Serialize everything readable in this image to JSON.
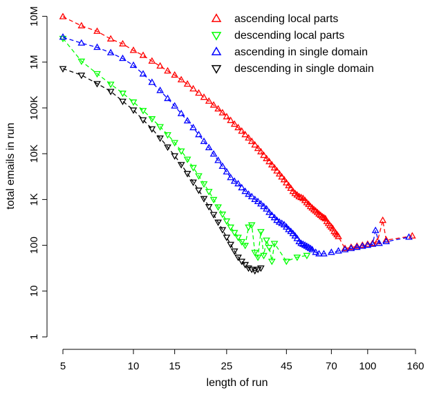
{
  "chart_data": {
    "type": "scatter",
    "title": "",
    "xlabel": "length of run",
    "ylabel": "total emails in run",
    "x_scale": "log",
    "y_scale": "log",
    "xlim": [
      4.5,
      170
    ],
    "ylim": [
      1,
      12000000
    ],
    "x_ticks": [
      5,
      10,
      15,
      25,
      45,
      70,
      100,
      160
    ],
    "x_tick_labels": [
      "5",
      "10",
      "15",
      "25",
      "45",
      "70",
      "100",
      "160"
    ],
    "y_ticks": [
      1,
      10,
      100,
      1000,
      10000,
      100000,
      1000000,
      10000000
    ],
    "y_tick_labels": [
      "1",
      "10",
      "100",
      "1K",
      "10K",
      "100K",
      "1M",
      "10M"
    ],
    "grid": false,
    "legend_position": "top-right",
    "series": [
      {
        "name": "ascending local parts",
        "marker": "triangle-up",
        "color": "#ff0000",
        "points": [
          [
            5,
            9800000
          ],
          [
            6,
            6200000
          ],
          [
            7,
            4700000
          ],
          [
            8,
            3200000
          ],
          [
            9,
            2500000
          ],
          [
            10,
            1800000
          ],
          [
            11,
            1400000
          ],
          [
            12,
            1050000
          ],
          [
            13,
            820000
          ],
          [
            14,
            640000
          ],
          [
            15,
            520000
          ],
          [
            16,
            410000
          ],
          [
            17,
            330000
          ],
          [
            18,
            260000
          ],
          [
            19,
            210000
          ],
          [
            20,
            170000
          ],
          [
            21,
            140000
          ],
          [
            22,
            115000
          ],
          [
            23,
            95000
          ],
          [
            24,
            78000
          ],
          [
            25,
            64000
          ],
          [
            26,
            53000
          ],
          [
            27,
            44000
          ],
          [
            28,
            37000
          ],
          [
            29,
            31000
          ],
          [
            30,
            26000
          ],
          [
            31,
            22000
          ],
          [
            32,
            18500
          ],
          [
            33,
            15500
          ],
          [
            34,
            13000
          ],
          [
            35,
            11000
          ],
          [
            36,
            9200
          ],
          [
            37,
            7800
          ],
          [
            38,
            6700
          ],
          [
            39,
            5700
          ],
          [
            40,
            4900
          ],
          [
            41,
            4200
          ],
          [
            42,
            3600
          ],
          [
            43,
            3100
          ],
          [
            44,
            2700
          ],
          [
            45,
            2300
          ],
          [
            46,
            2000
          ],
          [
            47,
            1750
          ],
          [
            48,
            1500
          ],
          [
            49,
            1350
          ],
          [
            50,
            1250
          ],
          [
            51,
            1150
          ],
          [
            52,
            1100
          ],
          [
            53,
            1050
          ],
          [
            54,
            950
          ],
          [
            55,
            850
          ],
          [
            56,
            780
          ],
          [
            57,
            700
          ],
          [
            58,
            650
          ],
          [
            59,
            600
          ],
          [
            60,
            560
          ],
          [
            61,
            520
          ],
          [
            62,
            480
          ],
          [
            63,
            450
          ],
          [
            64,
            420
          ],
          [
            65,
            400
          ],
          [
            66,
            380
          ],
          [
            67,
            330
          ],
          [
            68,
            300
          ],
          [
            69,
            270
          ],
          [
            70,
            250
          ],
          [
            71,
            230
          ],
          [
            72,
            200
          ],
          [
            73,
            185
          ],
          [
            74,
            170
          ],
          [
            75,
            155
          ],
          [
            80,
            85
          ],
          [
            85,
            90
          ],
          [
            90,
            95
          ],
          [
            95,
            100
          ],
          [
            100,
            105
          ],
          [
            105,
            110
          ],
          [
            110,
            120
          ],
          [
            116,
            350
          ],
          [
            120,
            130
          ],
          [
            155,
            160
          ]
        ]
      },
      {
        "name": "descending local parts",
        "marker": "triangle-down",
        "color": "#00ff00",
        "points": [
          [
            5,
            3300000
          ],
          [
            6,
            1050000
          ],
          [
            7,
            560000
          ],
          [
            8,
            330000
          ],
          [
            9,
            210000
          ],
          [
            10,
            135000
          ],
          [
            11,
            88000
          ],
          [
            12,
            58000
          ],
          [
            13,
            39000
          ],
          [
            14,
            26000
          ],
          [
            15,
            17500
          ],
          [
            16,
            11500
          ],
          [
            17,
            7600
          ],
          [
            18,
            5000
          ],
          [
            19,
            3300
          ],
          [
            20,
            2200
          ],
          [
            21,
            1500
          ],
          [
            22,
            1000
          ],
          [
            23,
            690
          ],
          [
            24,
            480
          ],
          [
            25,
            340
          ],
          [
            26,
            250
          ],
          [
            27,
            190
          ],
          [
            28,
            150
          ],
          [
            29,
            120
          ],
          [
            30,
            100
          ],
          [
            31,
            250
          ],
          [
            32,
            280
          ],
          [
            33,
            70
          ],
          [
            34,
            55
          ],
          [
            35,
            200
          ],
          [
            36,
            60
          ],
          [
            37,
            130
          ],
          [
            38,
            90
          ],
          [
            39,
            45
          ],
          [
            40,
            110
          ],
          [
            45,
            45
          ],
          [
            50,
            55
          ],
          [
            55,
            60
          ]
        ]
      },
      {
        "name": "ascending in single domain",
        "marker": "triangle-up",
        "color": "#0000ff",
        "points": [
          [
            5,
            3500000
          ],
          [
            6,
            2600000
          ],
          [
            7,
            2100000
          ],
          [
            8,
            1600000
          ],
          [
            9,
            1200000
          ],
          [
            10,
            850000
          ],
          [
            11,
            550000
          ],
          [
            12,
            360000
          ],
          [
            13,
            240000
          ],
          [
            14,
            160000
          ],
          [
            15,
            110000
          ],
          [
            16,
            75000
          ],
          [
            17,
            52000
          ],
          [
            18,
            37000
          ],
          [
            19,
            26000
          ],
          [
            20,
            18500
          ],
          [
            21,
            13500
          ],
          [
            22,
            9800
          ],
          [
            23,
            7100
          ],
          [
            24,
            5300
          ],
          [
            25,
            4000
          ],
          [
            26,
            3000
          ],
          [
            27,
            2500
          ],
          [
            28,
            2200
          ],
          [
            29,
            1800
          ],
          [
            30,
            1500
          ],
          [
            31,
            1300
          ],
          [
            32,
            1150
          ],
          [
            33,
            1000
          ],
          [
            34,
            900
          ],
          [
            35,
            800
          ],
          [
            36,
            700
          ],
          [
            37,
            620
          ],
          [
            38,
            520
          ],
          [
            39,
            450
          ],
          [
            40,
            400
          ],
          [
            41,
            350
          ],
          [
            42,
            320
          ],
          [
            43,
            300
          ],
          [
            44,
            280
          ],
          [
            45,
            250
          ],
          [
            46,
            220
          ],
          [
            47,
            200
          ],
          [
            48,
            180
          ],
          [
            49,
            160
          ],
          [
            50,
            140
          ],
          [
            51,
            120
          ],
          [
            52,
            110
          ],
          [
            53,
            105
          ],
          [
            54,
            100
          ],
          [
            55,
            95
          ],
          [
            56,
            90
          ],
          [
            57,
            85
          ],
          [
            58,
            80
          ],
          [
            60,
            70
          ],
          [
            62,
            65
          ],
          [
            65,
            65
          ],
          [
            70,
            70
          ],
          [
            75,
            75
          ],
          [
            80,
            80
          ],
          [
            85,
            85
          ],
          [
            90,
            90
          ],
          [
            95,
            95
          ],
          [
            100,
            100
          ],
          [
            105,
            105
          ],
          [
            108,
            210
          ],
          [
            112,
            110
          ],
          [
            120,
            120
          ],
          [
            150,
            150
          ]
        ]
      },
      {
        "name": "descending in single domain",
        "marker": "triangle-down",
        "color": "#000000",
        "points": [
          [
            5,
            720000
          ],
          [
            6,
            520000
          ],
          [
            7,
            340000
          ],
          [
            8,
            230000
          ],
          [
            9,
            140000
          ],
          [
            10,
            90000
          ],
          [
            11,
            55000
          ],
          [
            12,
            35000
          ],
          [
            13,
            22000
          ],
          [
            14,
            14000
          ],
          [
            15,
            9000
          ],
          [
            16,
            5800
          ],
          [
            17,
            3700
          ],
          [
            18,
            2400
          ],
          [
            19,
            1600
          ],
          [
            20,
            1050
          ],
          [
            21,
            700
          ],
          [
            22,
            470
          ],
          [
            23,
            320
          ],
          [
            24,
            220
          ],
          [
            25,
            150
          ],
          [
            26,
            105
          ],
          [
            27,
            75
          ],
          [
            28,
            55
          ],
          [
            29,
            45
          ],
          [
            30,
            38
          ],
          [
            31,
            32
          ],
          [
            32,
            30
          ],
          [
            33,
            28
          ],
          [
            34,
            30
          ],
          [
            35,
            32
          ]
        ]
      }
    ]
  }
}
